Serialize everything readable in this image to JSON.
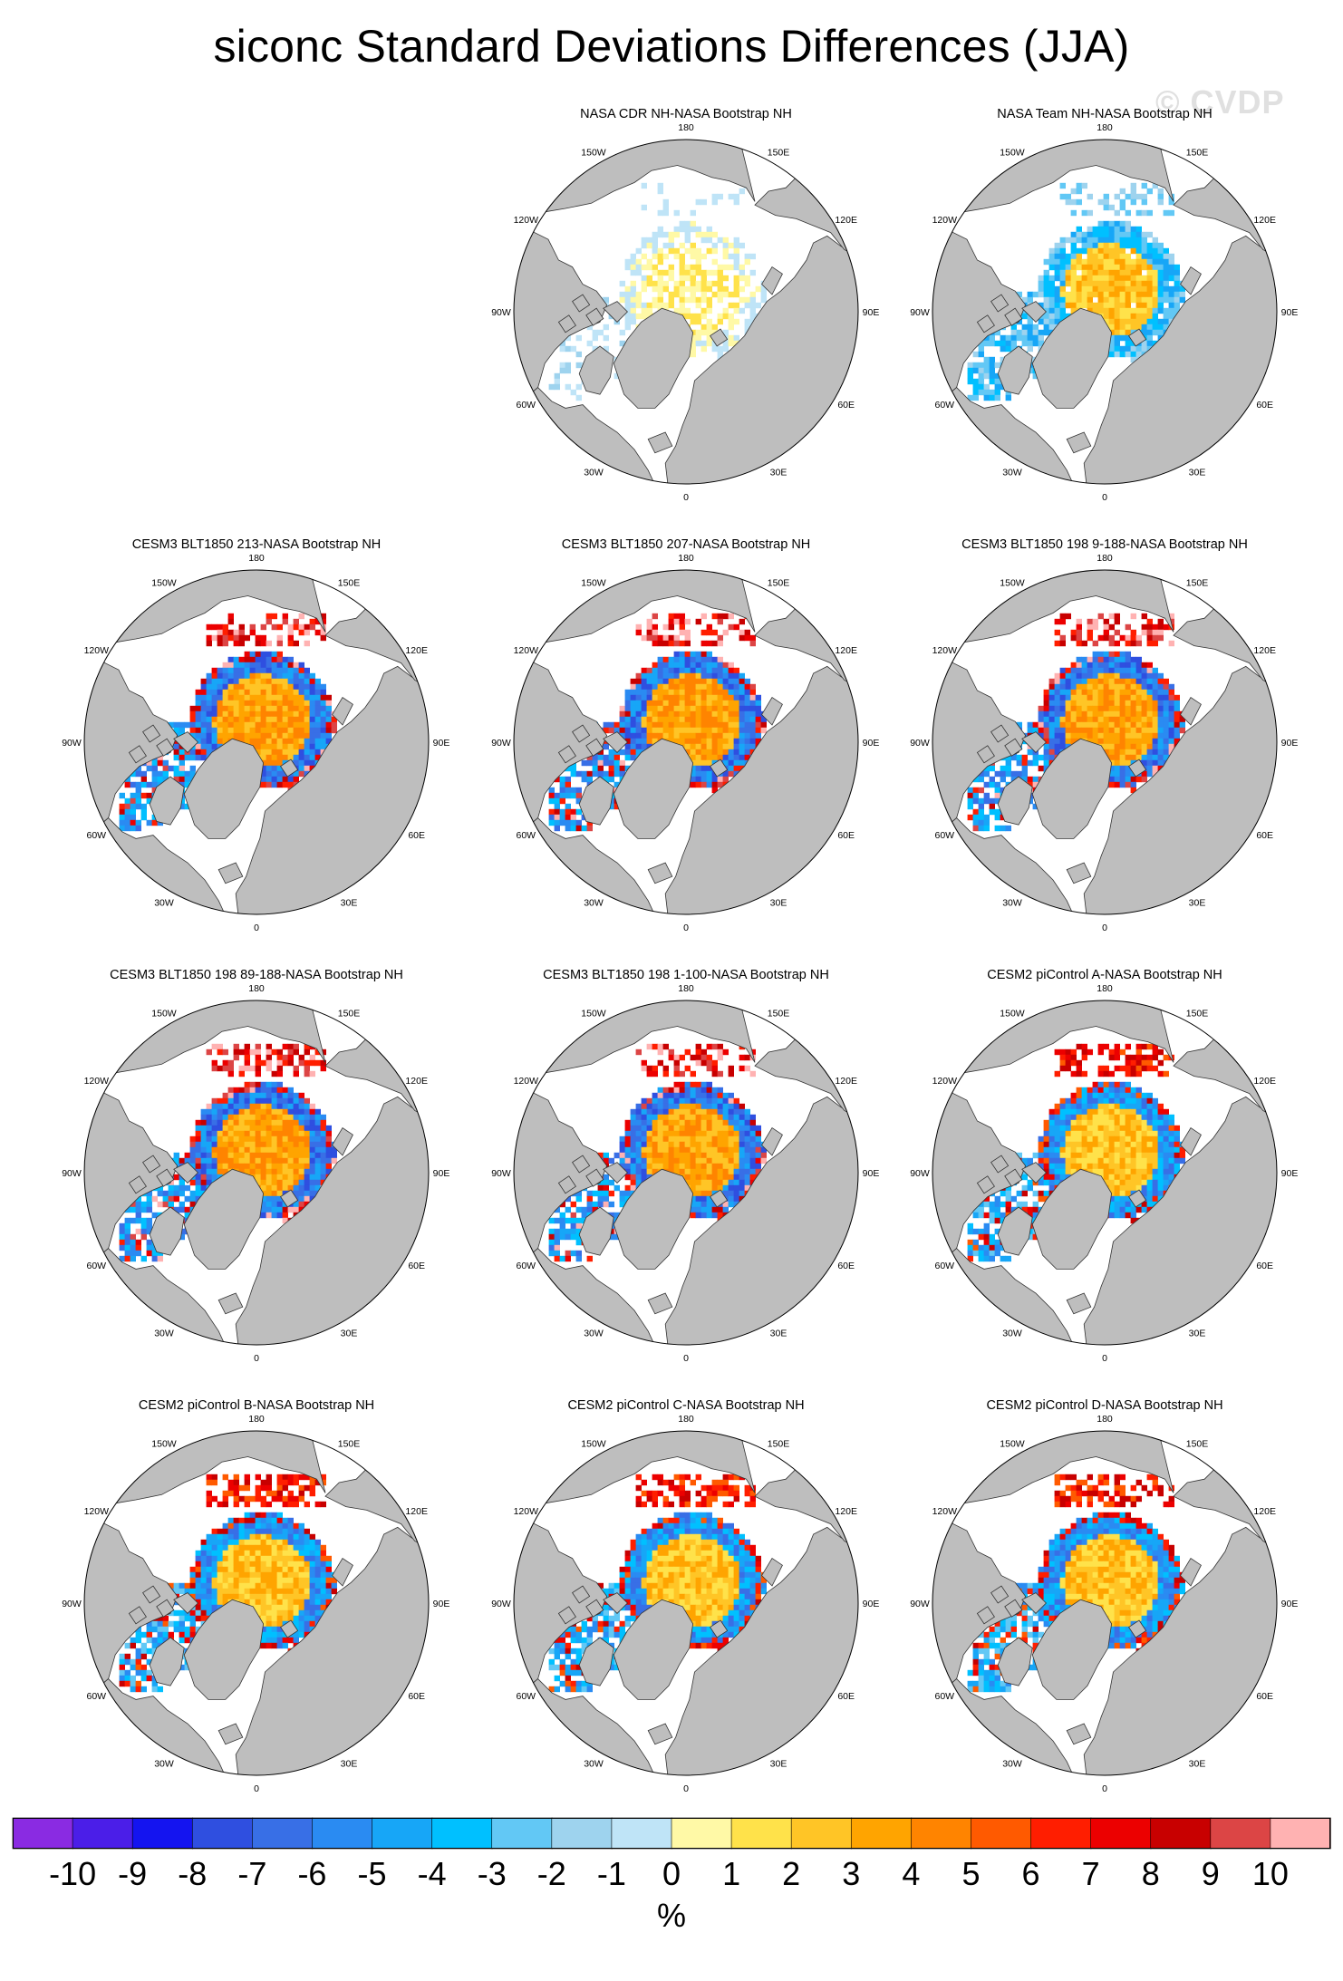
{
  "title": "siconc Standard Deviations Differences (JJA)",
  "watermark": "© CVDP",
  "lon_labels": [
    "180",
    "150E",
    "120E",
    "90E",
    "60E",
    "30E",
    "0",
    "30W",
    "60W",
    "90W",
    "120W",
    "150W"
  ],
  "panels": [
    {
      "title": "NASA CDR NH-NASA Bootstrap NH",
      "col": 1,
      "row": 0,
      "style": "cdr"
    },
    {
      "title": "NASA Team NH-NASA Bootstrap NH",
      "col": 2,
      "row": 0,
      "style": "team"
    },
    {
      "title": "CESM3 BLT1850 213-NASA Bootstrap NH",
      "col": 0,
      "row": 1,
      "style": "cesm3"
    },
    {
      "title": "CESM3 BLT1850 207-NASA Bootstrap NH",
      "col": 1,
      "row": 1,
      "style": "cesm3"
    },
    {
      "title": "CESM3 BLT1850 198 9-188-NASA Bootstrap NH",
      "col": 2,
      "row": 1,
      "style": "cesm3"
    },
    {
      "title": "CESM3 BLT1850 198 89-188-NASA Bootstrap NH",
      "col": 0,
      "row": 2,
      "style": "cesm3"
    },
    {
      "title": "CESM3 BLT1850 198 1-100-NASA Bootstrap NH",
      "col": 1,
      "row": 2,
      "style": "cesm3"
    },
    {
      "title": "CESM2 piControl A-NASA Bootstrap NH",
      "col": 2,
      "row": 2,
      "style": "cesm2"
    },
    {
      "title": "CESM2 piControl B-NASA Bootstrap NH",
      "col": 0,
      "row": 3,
      "style": "cesm2"
    },
    {
      "title": "CESM2 piControl C-NASA Bootstrap NH",
      "col": 1,
      "row": 3,
      "style": "cesm2"
    },
    {
      "title": "CESM2 piControl D-NASA Bootstrap NH",
      "col": 2,
      "row": 3,
      "style": "cesm2"
    }
  ],
  "colorbar": {
    "unit": "%",
    "tick_labels": [
      "-10",
      "-9",
      "-8",
      "-7",
      "-6",
      "-5",
      "-4",
      "-3",
      "-2",
      "-1",
      "0",
      "1",
      "2",
      "3",
      "4",
      "5",
      "6",
      "7",
      "8",
      "9",
      "10"
    ],
    "colors": [
      "#8a2be2",
      "#4b1ee8",
      "#1414f0",
      "#2f4fe0",
      "#386fe6",
      "#2a8bf2",
      "#17a6f7",
      "#00c0ff",
      "#62c8f5",
      "#9ed3ee",
      "#bfe4f7",
      "#fff9a6",
      "#ffe24a",
      "#ffc526",
      "#ffa400",
      "#ff8400",
      "#ff5a00",
      "#ff1e00",
      "#ec0000",
      "#c80000",
      "#dc4545",
      "#ffb2b2"
    ]
  },
  "colors": {
    "land": "#bebebe",
    "ocean": "#ffffff",
    "coast": "#333333"
  }
}
